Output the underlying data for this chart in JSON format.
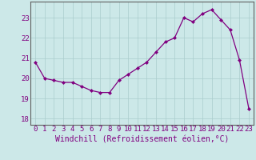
{
  "x": [
    0,
    1,
    2,
    3,
    4,
    5,
    6,
    7,
    8,
    9,
    10,
    11,
    12,
    13,
    14,
    15,
    16,
    17,
    18,
    19,
    20,
    21,
    22,
    23
  ],
  "y": [
    20.8,
    20.0,
    19.9,
    19.8,
    19.8,
    19.6,
    19.4,
    19.3,
    19.3,
    19.9,
    20.2,
    20.5,
    20.8,
    21.3,
    21.8,
    22.0,
    23.0,
    22.8,
    23.2,
    23.4,
    22.9,
    22.4,
    20.9,
    18.5
  ],
  "line_color": "#800080",
  "marker": "D",
  "marker_size": 2,
  "xlabel": "Windchill (Refroidissement éolien,°C)",
  "ylabel_ticks": [
    18,
    19,
    20,
    21,
    22,
    23
  ],
  "xlim": [
    -0.5,
    23.5
  ],
  "ylim": [
    17.7,
    23.8
  ],
  "bg_color": "#cce8e8",
  "grid_color": "#aacccc",
  "spine_color": "#606060",
  "font_color": "#800080",
  "tick_fontsize": 6.5,
  "xlabel_fontsize": 7
}
